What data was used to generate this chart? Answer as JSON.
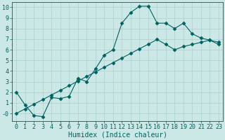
{
  "xlabel": "Humidex (Indice chaleur)",
  "background_color": "#cce8e6",
  "grid_color": "#aacfcd",
  "line_color": "#006060",
  "marker_color": "#006060",
  "xlim": [
    -0.5,
    23.5
  ],
  "ylim": [
    -0.7,
    10.5
  ],
  "xticks": [
    0,
    1,
    2,
    3,
    4,
    5,
    6,
    7,
    8,
    9,
    10,
    11,
    12,
    13,
    14,
    15,
    16,
    17,
    18,
    19,
    20,
    21,
    22,
    23
  ],
  "yticks": [
    0,
    1,
    2,
    3,
    4,
    5,
    6,
    7,
    8,
    9,
    10
  ],
  "ytick_labels": [
    "-0",
    "1",
    "2",
    "3",
    "4",
    "5",
    "6",
    "7",
    "8",
    "9",
    "10"
  ],
  "curve1_x": [
    0,
    1,
    2,
    3,
    4,
    5,
    6,
    7,
    8,
    9,
    10,
    11,
    12,
    13,
    14,
    15,
    16,
    17,
    18,
    19,
    20,
    21,
    22,
    23
  ],
  "curve1_y": [
    2.0,
    0.8,
    -0.2,
    -0.3,
    1.5,
    1.4,
    1.6,
    3.3,
    3.0,
    4.2,
    5.5,
    6.0,
    8.5,
    9.5,
    10.1,
    10.1,
    8.5,
    8.5,
    8.0,
    8.5,
    7.5,
    7.1,
    6.9,
    6.5
  ],
  "curve2_x": [
    0,
    1,
    2,
    3,
    4,
    5,
    6,
    7,
    8,
    9,
    10,
    11,
    12,
    13,
    14,
    15,
    16,
    17,
    18,
    19,
    20,
    21,
    22,
    23
  ],
  "curve2_y": [
    0.0,
    0.43,
    0.87,
    1.3,
    1.74,
    2.17,
    2.61,
    3.04,
    3.48,
    3.91,
    4.35,
    4.78,
    5.22,
    5.65,
    6.09,
    6.52,
    6.96,
    6.5,
    6.0,
    6.3,
    6.5,
    6.7,
    6.9,
    6.7
  ],
  "xlabel_fontsize": 7,
  "tick_fontsize": 6,
  "linewidth": 0.8,
  "markersize": 2.5
}
